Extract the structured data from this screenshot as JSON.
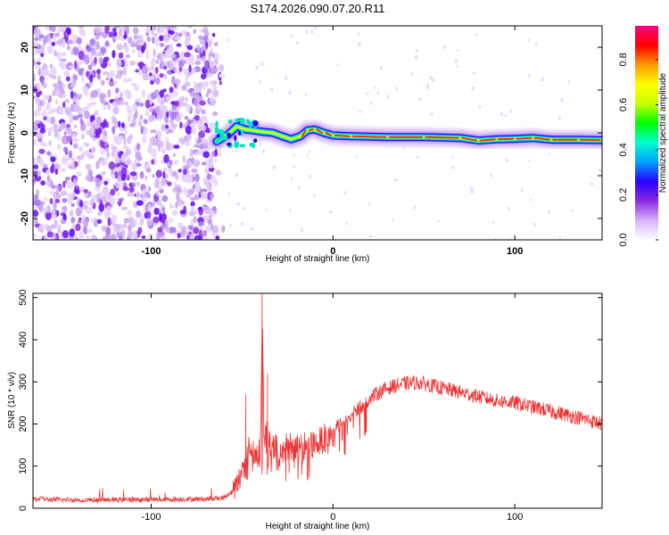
{
  "figure": {
    "title": "S174.2026.090.07.20.R11"
  },
  "chart_data": [
    {
      "type": "heatmap",
      "title": "S174.2026.090.07.20.R11",
      "xlabel": "Height of straight line (km)",
      "ylabel": "Frequency (Hz)",
      "xlim": [
        -165,
        148
      ],
      "ylim": [
        -25,
        25
      ],
      "xticks": [
        -100,
        0,
        100
      ],
      "xtick_labels": [
        "-100",
        "0",
        "100"
      ],
      "yticks": [
        20,
        10,
        0,
        -10,
        -20
      ],
      "ytick_labels": [
        "20",
        "10",
        "0",
        "-10",
        "-20"
      ],
      "noise_region_x": [
        -165,
        -63
      ],
      "signal_start_x": -65,
      "signal_track": [
        {
          "x": -64,
          "y": -2.0
        },
        {
          "x": -58,
          "y": -0.5
        },
        {
          "x": -53,
          "y": 1.5
        },
        {
          "x": -48,
          "y": 0.8
        },
        {
          "x": -43,
          "y": 0.5
        },
        {
          "x": -38,
          "y": 0.2
        },
        {
          "x": -33,
          "y": 0.0
        },
        {
          "x": -28,
          "y": -0.8
        },
        {
          "x": -23,
          "y": -1.5
        },
        {
          "x": -18,
          "y": -0.8
        },
        {
          "x": -14,
          "y": 0.6
        },
        {
          "x": -10,
          "y": 0.8
        },
        {
          "x": -5,
          "y": 0.0
        },
        {
          "x": 0,
          "y": -0.6
        },
        {
          "x": 10,
          "y": -0.8
        },
        {
          "x": 30,
          "y": -1.0
        },
        {
          "x": 50,
          "y": -1.0
        },
        {
          "x": 70,
          "y": -1.2
        },
        {
          "x": 80,
          "y": -1.8
        },
        {
          "x": 90,
          "y": -1.5
        },
        {
          "x": 100,
          "y": -1.4
        },
        {
          "x": 110,
          "y": -1.2
        },
        {
          "x": 120,
          "y": -1.6
        },
        {
          "x": 135,
          "y": -1.6
        },
        {
          "x": 148,
          "y": -1.7
        }
      ],
      "colorbar": {
        "label": "Normalized spectral amplitude",
        "range": [
          0,
          0.95
        ],
        "ticks": [
          0.0,
          0.2,
          0.4,
          0.6,
          0.8
        ],
        "tick_labels": [
          "0.0",
          "0.2",
          "0.4",
          "0.6",
          "0.8"
        ],
        "colors": [
          "#ffffff",
          "#d8b4f8",
          "#8a2be2",
          "#2a00ff",
          "#00a0ff",
          "#00ffd0",
          "#00ff00",
          "#c8ff00",
          "#ffff00",
          "#ff9900",
          "#ff0000",
          "#ff0080"
        ]
      }
    },
    {
      "type": "line",
      "title": "",
      "xlabel": "Height of straight line (km)",
      "ylabel": "SNR (10 * v/v)",
      "xlim": [
        -165,
        148
      ],
      "ylim": [
        0,
        510
      ],
      "xticks": [
        -100,
        0,
        100
      ],
      "xtick_labels": [
        "-100",
        "0",
        "100"
      ],
      "yticks": [
        0,
        100,
        200,
        300,
        400,
        500
      ],
      "ytick_labels": [
        "0",
        "100",
        "200",
        "300",
        "400",
        "500"
      ],
      "color": "#ee3333",
      "series": [
        {
          "name": "SNR",
          "x": [
            -165,
            -150,
            -130,
            -110,
            -90,
            -70,
            -60,
            -55,
            -52,
            -50,
            -48,
            -46,
            -44,
            -42,
            -40,
            -39,
            -38,
            -36,
            -34,
            -32,
            -30,
            -25,
            -20,
            -15,
            -10,
            -5,
            0,
            5,
            10,
            15,
            20,
            25,
            30,
            35,
            40,
            45,
            50,
            55,
            60,
            70,
            80,
            90,
            100,
            110,
            120,
            130,
            140,
            148
          ],
          "y": [
            22,
            20,
            20,
            20,
            21,
            22,
            25,
            40,
            60,
            95,
            120,
            140,
            150,
            120,
            160,
            510,
            180,
            170,
            140,
            150,
            130,
            150,
            140,
            150,
            150,
            165,
            180,
            205,
            220,
            240,
            260,
            275,
            285,
            292,
            296,
            298,
            296,
            290,
            285,
            275,
            265,
            255,
            250,
            240,
            230,
            220,
            210,
            200
          ]
        }
      ],
      "spikes": [
        {
          "x": -48,
          "y": 270
        },
        {
          "x": -39,
          "y": 510
        },
        {
          "x": -36,
          "y": 320
        }
      ]
    }
  ]
}
